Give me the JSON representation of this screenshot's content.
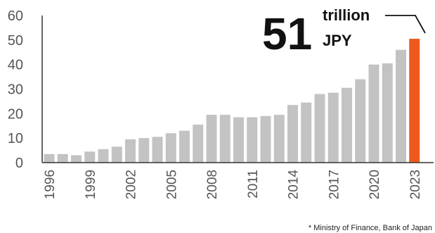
{
  "chart_data": {
    "type": "bar",
    "categories": [
      "1996",
      "1997",
      "1998",
      "1999",
      "2000",
      "2001",
      "2002",
      "2003",
      "2004",
      "2005",
      "2006",
      "2007",
      "2008",
      "2009",
      "2010",
      "2011",
      "2012",
      "2013",
      "2014",
      "2015",
      "2016",
      "2017",
      "2018",
      "2019",
      "2020",
      "2021",
      "2022",
      "2023"
    ],
    "values": [
      3.5,
      3.5,
      3,
      4.5,
      5.5,
      6.5,
      9.5,
      10,
      10.5,
      12,
      13,
      15.5,
      19.5,
      19.5,
      18.5,
      18.5,
      19,
      19.5,
      23.5,
      24.5,
      28,
      28.5,
      30.5,
      34,
      40,
      40.5,
      46,
      50.5
    ],
    "x_tick_labels": [
      "1996",
      "1999",
      "2002",
      "2005",
      "2008",
      "2011",
      "2014",
      "2017",
      "2020",
      "2023"
    ],
    "y_ticks": [
      0,
      10,
      20,
      30,
      40,
      50,
      60
    ],
    "ylim": [
      0,
      60
    ],
    "grid": false,
    "colors": {
      "bar": "#c3c3c3",
      "highlight": "#ed5a1e",
      "axis": "#333333"
    },
    "highlight_category": "2023",
    "annotation": {
      "value": "51",
      "unit_line1": "trillion",
      "unit_line2": "JPY"
    },
    "title": "",
    "xlabel": "",
    "ylabel": ""
  },
  "source_note": "* Ministry of Finance, Bank of Japan"
}
